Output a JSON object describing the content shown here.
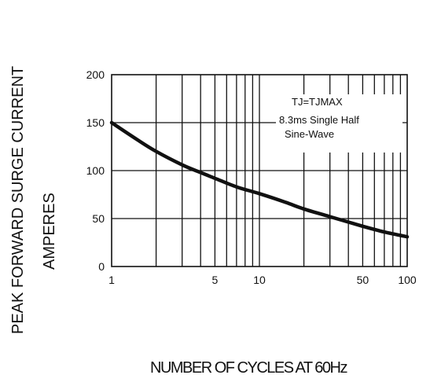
{
  "chart_data": {
    "type": "line",
    "x_scale": "log",
    "y_scale": "linear",
    "xlabel": "NUMBER OF CYCLES AT 60Hz",
    "ylabel_lines": [
      "PEAK FORWARD SURGE CURRENT",
      "AMPERES"
    ],
    "xlim": [
      1,
      100
    ],
    "ylim": [
      0,
      200
    ],
    "x_ticks": [
      1,
      5,
      10,
      50,
      100
    ],
    "x_tick_labels": [
      "1",
      "5",
      "10",
      "50",
      "100"
    ],
    "y_ticks": [
      0,
      50,
      100,
      150,
      200
    ],
    "y_tick_labels": [
      "0",
      "50",
      "100",
      "150",
      "200"
    ],
    "grid": true,
    "annotation_lines": [
      "TJ=TJMAX",
      "8.3ms Single Half",
      "Sine-Wave"
    ],
    "series": [
      {
        "x": [
          1,
          1.5,
          2,
          3,
          4,
          5,
          7,
          10,
          15,
          20,
          30,
          50,
          70,
          100
        ],
        "y": [
          150,
          132,
          120,
          106,
          98,
          92,
          83,
          76,
          67,
          60,
          52,
          42,
          36,
          31
        ]
      }
    ]
  },
  "colors": {
    "line": "#111111",
    "grid": "#111111",
    "background": "#ffffff"
  }
}
